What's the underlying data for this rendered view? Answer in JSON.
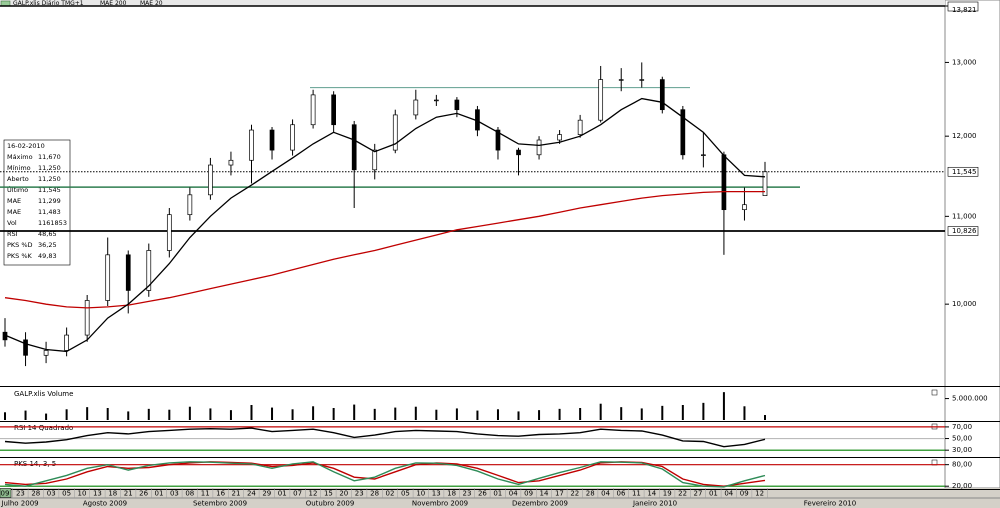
{
  "header": {
    "title": "GALP.xlis Diário TMG+1"
  },
  "info_box": {
    "date": "16-02-2010",
    "rows": [
      {
        "label": "Máximo",
        "value": "11,670",
        "color": "#000000"
      },
      {
        "label": "Mínimo",
        "value": "11,250",
        "color": "#000000"
      },
      {
        "label": "Aberto",
        "value": "11,250",
        "color": "#000000"
      },
      {
        "label": "Último",
        "value": "11,545",
        "color": "#000000"
      },
      {
        "label": "MAE",
        "value": "11,299",
        "color": "#c00000"
      },
      {
        "label": "MAE",
        "value": "11,483",
        "color": "#000000"
      },
      {
        "label": "Vol",
        "value": "1161853",
        "color": "#000000"
      },
      {
        "label": "RSI",
        "value": "48,65",
        "color": "#000000"
      },
      {
        "label": "PKS %D",
        "value": "36,25",
        "color": "#c00000"
      },
      {
        "label": "PKS %K",
        "value": "49,83",
        "color": "#2e8b57"
      }
    ]
  },
  "x_axis": {
    "dates": [
      "09",
      "23",
      "28",
      "03",
      "05",
      "10",
      "13",
      "18",
      "21",
      "26",
      "01",
      "03",
      "08",
      "11",
      "16",
      "21",
      "24",
      "29",
      "01",
      "07",
      "12",
      "15",
      "20",
      "23",
      "28",
      "02",
      "05",
      "10",
      "13",
      "18",
      "23",
      "26",
      "01",
      "04",
      "09",
      "14",
      "17",
      "22",
      "28",
      "04",
      "06",
      "11",
      "14",
      "19",
      "22",
      "27",
      "01",
      "04",
      "09",
      "12"
    ],
    "months": [
      "Julho 2009",
      "Agosto 2009",
      "Setembro 2009",
      "Outubro 2009",
      "Novembro 2009",
      "Dezembro 2009",
      "Janeiro 2010",
      "Fevereiro 2010"
    ]
  },
  "chart_data": [
    {
      "type": "candlestick",
      "log_scale": true,
      "open": [
        9.7,
        9.62,
        9.46,
        9.51,
        9.67,
        10.04,
        10.55,
        10.15,
        10.6,
        11.02,
        11.26,
        11.63,
        11.69,
        12.08,
        11.82,
        12.15,
        12.55,
        12.15,
        11.57,
        11.82,
        12.28,
        12.48,
        12.48,
        12.35,
        12.08,
        11.82,
        11.76,
        11.95,
        12.02,
        12.21,
        12.76,
        12.76,
        12.76,
        12.35,
        11.76,
        11.76,
        11.08,
        11.25
      ],
      "high": [
        9.85,
        9.7,
        9.6,
        9.75,
        10.1,
        10.75,
        10.6,
        10.68,
        11.1,
        11.35,
        11.72,
        11.8,
        12.15,
        12.12,
        12.22,
        12.62,
        12.6,
        12.2,
        11.9,
        12.35,
        12.62,
        12.55,
        12.52,
        12.4,
        12.12,
        11.85,
        12.0,
        12.08,
        12.28,
        12.95,
        12.92,
        13.0,
        12.8,
        12.4,
        12.05,
        11.8,
        11.35,
        11.67
      ],
      "low": [
        9.55,
        9.35,
        9.38,
        9.45,
        9.6,
        9.98,
        9.9,
        10.08,
        10.52,
        10.95,
        11.2,
        11.5,
        11.4,
        11.7,
        11.75,
        12.1,
        12.05,
        11.1,
        11.45,
        11.78,
        12.22,
        12.4,
        12.25,
        12.0,
        11.7,
        11.5,
        11.7,
        11.9,
        11.98,
        12.18,
        12.6,
        12.65,
        12.3,
        11.7,
        11.6,
        10.55,
        10.95,
        11.25
      ],
      "close": [
        9.62,
        9.46,
        9.51,
        9.67,
        10.04,
        10.55,
        10.15,
        10.6,
        11.02,
        11.26,
        11.63,
        11.69,
        12.08,
        11.82,
        12.15,
        12.55,
        12.15,
        11.57,
        11.82,
        12.28,
        12.48,
        12.48,
        12.35,
        12.08,
        11.82,
        11.76,
        11.95,
        12.02,
        12.21,
        12.76,
        12.76,
        12.76,
        12.35,
        11.76,
        11.76,
        11.08,
        11.14,
        11.545
      ],
      "series": [
        {
          "name": "MAE 200",
          "color": "#c00000",
          "values": [
            10.07,
            10.04,
            10.0,
            9.97,
            9.96,
            9.97,
            9.99,
            10.03,
            10.07,
            10.12,
            10.17,
            10.22,
            10.27,
            10.32,
            10.38,
            10.44,
            10.5,
            10.55,
            10.6,
            10.66,
            10.72,
            10.78,
            10.84,
            10.88,
            10.92,
            10.96,
            11.0,
            11.05,
            11.1,
            11.14,
            11.18,
            11.22,
            11.25,
            11.27,
            11.29,
            11.3,
            11.3,
            11.299
          ]
        },
        {
          "name": "MAE 20",
          "color": "#000000",
          "values": [
            9.67,
            9.58,
            9.52,
            9.5,
            9.62,
            9.85,
            10.0,
            10.2,
            10.45,
            10.75,
            11.0,
            11.22,
            11.38,
            11.55,
            11.72,
            11.9,
            12.05,
            11.95,
            11.8,
            11.9,
            12.1,
            12.25,
            12.3,
            12.2,
            12.05,
            11.9,
            11.88,
            11.92,
            12.0,
            12.15,
            12.35,
            12.5,
            12.45,
            12.25,
            12.05,
            11.75,
            11.5,
            11.483
          ]
        }
      ],
      "ylim": [
        9.16,
        13.821
      ],
      "yticks": [
        {
          "value": 10,
          "label": "10,000"
        },
        {
          "value": 11,
          "label": "11,000"
        },
        {
          "value": 12,
          "label": "12,000"
        },
        {
          "value": 13,
          "label": "13,000"
        },
        {
          "value": 13.821,
          "label": "13,821"
        }
      ],
      "levels": [
        {
          "value": 11.545,
          "label": "11,545",
          "color": "#000000",
          "style": "dotted"
        },
        {
          "value": 10.826,
          "label": "10,826",
          "color": "#000000",
          "style": "thick"
        },
        {
          "value": 11.355,
          "color": "#2e7d4f",
          "style": "solid"
        },
        {
          "value": 12.65,
          "color": "#5f9e8f",
          "style": "segment"
        }
      ]
    },
    {
      "type": "bar",
      "title": "GALP.xlis Volume",
      "color": "#000000",
      "values": [
        1800000,
        2200000,
        1500000,
        2500000,
        3000000,
        2800000,
        2000000,
        2600000,
        2400000,
        3100000,
        2700000,
        2300000,
        3500000,
        2900000,
        2500000,
        3200000,
        2800000,
        3600000,
        2600000,
        2900000,
        3100000,
        2400000,
        2700000,
        2200000,
        2500000,
        2000000,
        2300000,
        2600000,
        2800000,
        3800000,
        3000000,
        2700000,
        3300000,
        3500000,
        4000000,
        6500000,
        3200000,
        1161853
      ],
      "ylim": [
        0,
        7000000
      ],
      "yticks": [
        {
          "value": 5000000,
          "label": "5.000.000"
        }
      ]
    },
    {
      "type": "line",
      "title": "RSI 14 Quadrado",
      "series": [
        {
          "color": "#000000",
          "values": [
            45,
            42,
            44,
            48,
            55,
            60,
            58,
            62,
            64,
            66,
            67,
            66,
            68,
            62,
            64,
            66,
            60,
            52,
            56,
            62,
            64,
            63,
            62,
            58,
            55,
            54,
            57,
            58,
            60,
            66,
            64,
            63,
            56,
            46,
            45,
            36,
            40,
            48.65
          ]
        }
      ],
      "ylim": [
        20,
        75
      ],
      "yticks": [
        {
          "value": 70,
          "label": "70,00",
          "color": "#c00000"
        },
        {
          "value": 50,
          "label": "50,00",
          "color": "#bbbbbb"
        },
        {
          "value": 30,
          "label": "30,00",
          "color": "#008000"
        }
      ]
    },
    {
      "type": "line",
      "title": "PKS 14, 3, 5",
      "series": [
        {
          "color": "#c00000",
          "values": [
            30,
            25,
            28,
            40,
            60,
            75,
            70,
            72,
            80,
            85,
            88,
            86,
            84,
            75,
            78,
            85,
            70,
            45,
            40,
            60,
            80,
            85,
            82,
            70,
            50,
            30,
            35,
            50,
            65,
            85,
            88,
            86,
            75,
            40,
            25,
            20,
            28,
            36.25
          ]
        },
        {
          "color": "#2e8b57",
          "values": [
            25,
            20,
            35,
            50,
            70,
            80,
            65,
            78,
            85,
            88,
            87,
            84,
            82,
            70,
            82,
            88,
            60,
            35,
            45,
            70,
            85,
            84,
            78,
            62,
            40,
            25,
            42,
            58,
            72,
            88,
            87,
            85,
            68,
            30,
            20,
            18,
            35,
            49.83
          ]
        }
      ],
      "ylim": [
        15,
        93
      ],
      "yticks": [
        {
          "value": 80,
          "label": "80,00",
          "color": "#c00000"
        },
        {
          "value": 20,
          "label": "20,00",
          "color": "#008000"
        }
      ]
    }
  ]
}
